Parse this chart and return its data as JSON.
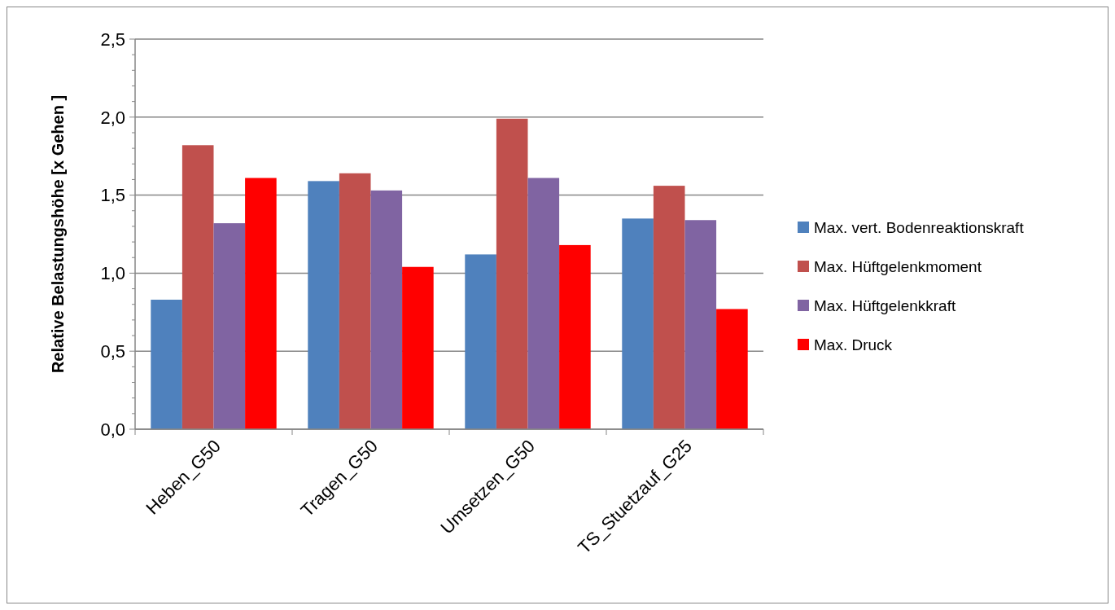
{
  "chart_data": {
    "type": "bar",
    "ylabel": "Relative Belastungshöhe [x Gehen ]",
    "categories": [
      "Heben_G50",
      "Tragen_G50",
      "Umsetzen_G50",
      "TS_Stuetzauf_G25"
    ],
    "series": [
      {
        "name": "Max. vert. Bodenreaktionskraft",
        "color": "#4f81bd",
        "values": [
          0.83,
          1.59,
          1.12,
          1.35
        ]
      },
      {
        "name": "Max. Hüftgelenkmoment",
        "color": "#c0504d",
        "values": [
          1.82,
          1.64,
          1.99,
          1.56
        ]
      },
      {
        "name": "Max. Hüftgelenkkraft",
        "color": "#8064a2",
        "values": [
          1.32,
          1.53,
          1.61,
          1.34
        ]
      },
      {
        "name": "Max. Druck",
        "color": "#ff0000",
        "values": [
          1.61,
          1.04,
          1.18,
          0.77
        ]
      }
    ],
    "ylim": [
      0,
      2.5
    ],
    "yticks": [
      {
        "value": 0,
        "label": "0,0"
      },
      {
        "value": 0.5,
        "label": "0,5"
      },
      {
        "value": 1,
        "label": "1,0"
      },
      {
        "value": 1.5,
        "label": "1,5"
      },
      {
        "value": 2,
        "label": "2,0"
      },
      {
        "value": 2.5,
        "label": "2,5"
      }
    ],
    "grid": "y",
    "legend": "right"
  }
}
